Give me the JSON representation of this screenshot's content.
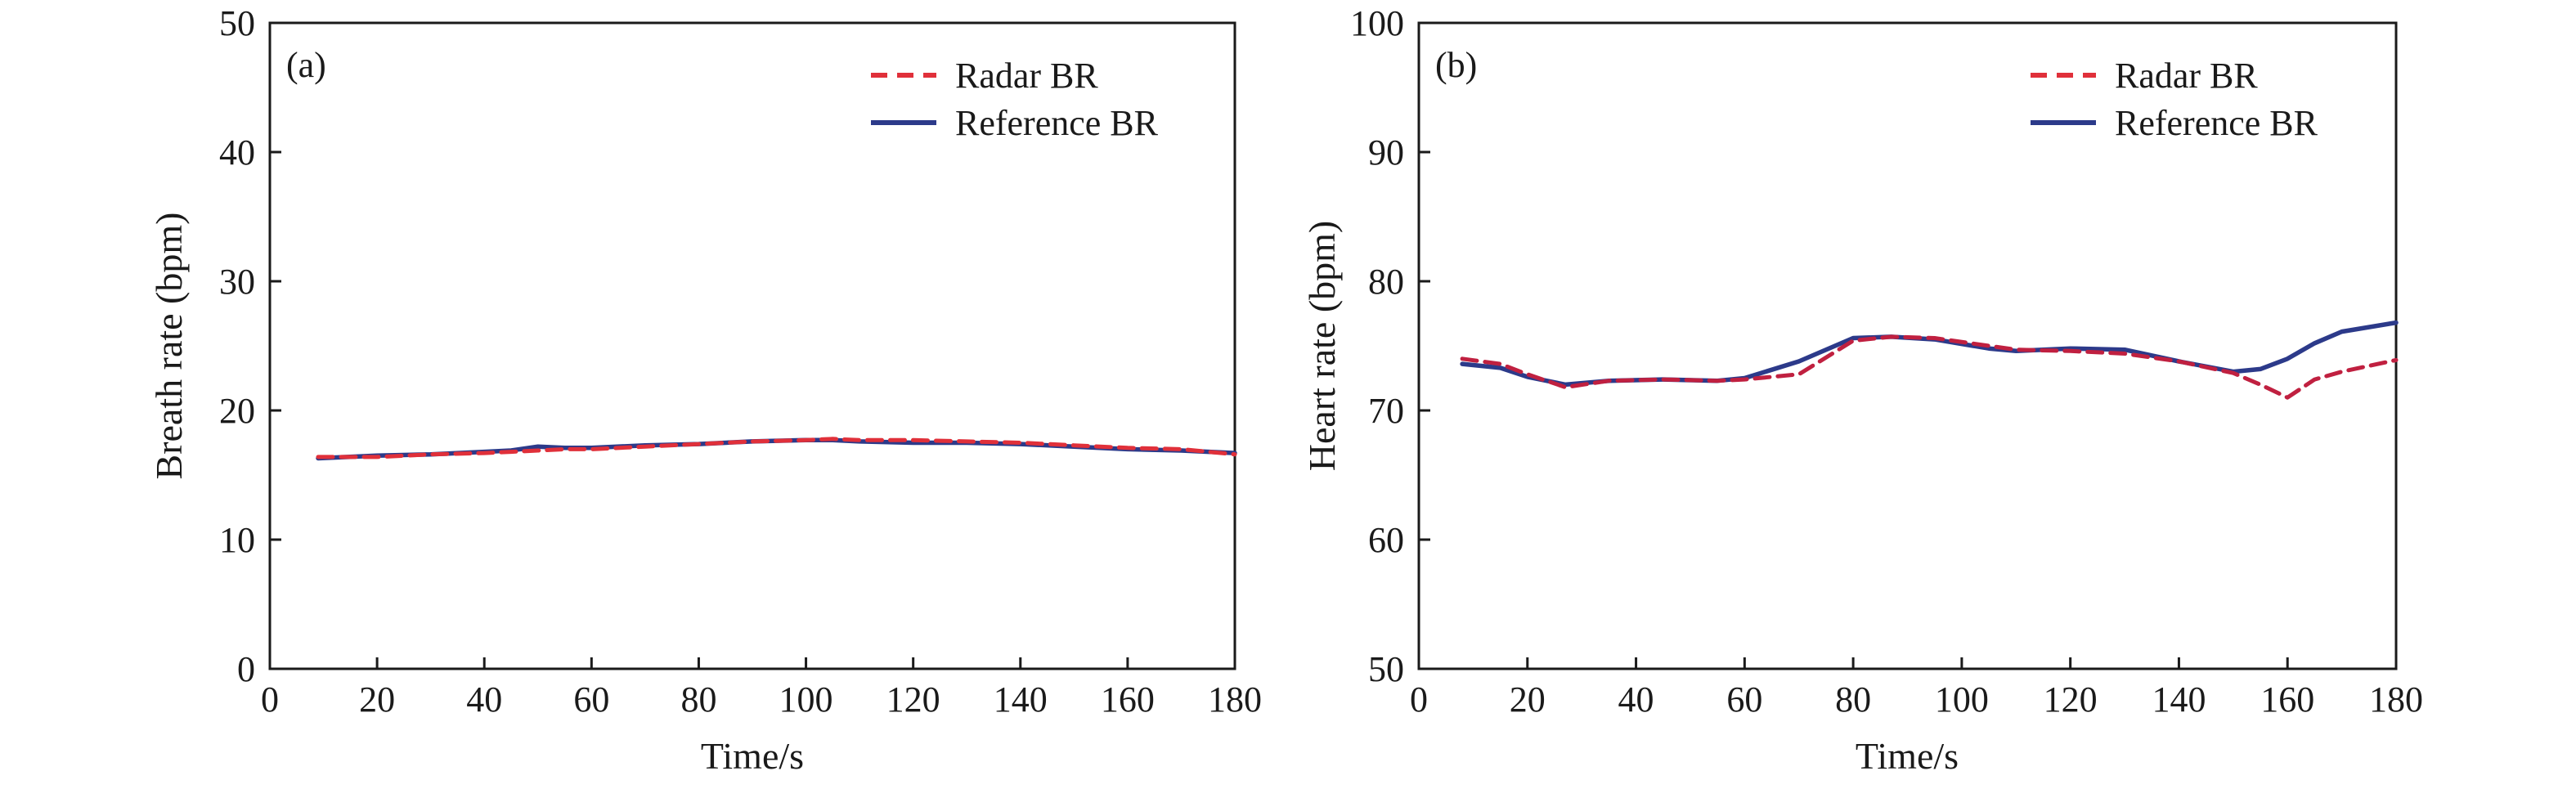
{
  "chart_data": [
    {
      "type": "line",
      "panel_label": "(a)",
      "xlabel": "Time/s",
      "ylabel": "Breath rate (bpm)",
      "xlim": [
        0,
        180
      ],
      "ylim": [
        0,
        50
      ],
      "xticks": [
        0,
        20,
        40,
        60,
        80,
        100,
        120,
        140,
        160,
        180
      ],
      "yticks": [
        0,
        10,
        20,
        30,
        40,
        50
      ],
      "legend_position": "top-right",
      "grid": false,
      "series": [
        {
          "name": "Radar BR",
          "style": "dashed",
          "color": "#e0303a",
          "x": [
            9,
            20,
            30,
            40,
            45,
            50,
            55,
            60,
            70,
            80,
            90,
            100,
            105,
            110,
            120,
            130,
            140,
            150,
            160,
            170,
            180
          ],
          "y": [
            16.4,
            16.4,
            16.6,
            16.7,
            16.8,
            16.9,
            17.0,
            17.0,
            17.2,
            17.4,
            17.6,
            17.7,
            17.8,
            17.7,
            17.7,
            17.6,
            17.5,
            17.3,
            17.1,
            17.0,
            16.6
          ]
        },
        {
          "name": "Reference BR",
          "style": "solid",
          "color": "#2c3a8a",
          "x": [
            9,
            20,
            30,
            40,
            45,
            50,
            55,
            60,
            70,
            80,
            90,
            100,
            105,
            110,
            120,
            130,
            140,
            150,
            160,
            170,
            180
          ],
          "y": [
            16.3,
            16.5,
            16.6,
            16.8,
            16.9,
            17.2,
            17.1,
            17.1,
            17.3,
            17.4,
            17.6,
            17.7,
            17.7,
            17.6,
            17.5,
            17.5,
            17.4,
            17.2,
            17.0,
            16.9,
            16.7
          ]
        }
      ]
    },
    {
      "type": "line",
      "panel_label": "(b)",
      "xlabel": "Time/s",
      "ylabel": "Heart rate (bpm)",
      "xlim": [
        0,
        180
      ],
      "ylim": [
        50,
        100
      ],
      "xticks": [
        0,
        20,
        40,
        60,
        80,
        100,
        120,
        140,
        160,
        180
      ],
      "yticks": [
        50,
        60,
        70,
        80,
        90,
        100
      ],
      "legend_position": "top-right",
      "grid": false,
      "series": [
        {
          "name": "Radar BR",
          "style": "dashed",
          "color": "#c02040",
          "x": [
            8,
            15,
            20,
            27,
            35,
            45,
            55,
            60,
            70,
            80,
            87,
            95,
            105,
            110,
            120,
            130,
            140,
            150,
            155,
            160,
            165,
            170,
            180
          ],
          "y": [
            74.0,
            73.6,
            72.8,
            71.8,
            72.3,
            72.4,
            72.3,
            72.4,
            72.8,
            75.4,
            75.7,
            75.6,
            75.0,
            74.7,
            74.6,
            74.4,
            73.8,
            72.9,
            72.0,
            71.0,
            72.4,
            73.0,
            73.9
          ]
        },
        {
          "name": "Reference BR",
          "style": "solid",
          "color": "#2c3a8a",
          "x": [
            8,
            15,
            20,
            27,
            35,
            45,
            55,
            60,
            70,
            80,
            87,
            95,
            105,
            110,
            120,
            130,
            140,
            150,
            155,
            160,
            165,
            170,
            180
          ],
          "y": [
            73.6,
            73.3,
            72.6,
            72.0,
            72.3,
            72.4,
            72.3,
            72.5,
            73.8,
            75.6,
            75.7,
            75.5,
            74.8,
            74.6,
            74.8,
            74.7,
            73.8,
            73.0,
            73.2,
            74.0,
            75.2,
            76.1,
            76.8
          ]
        }
      ]
    }
  ]
}
